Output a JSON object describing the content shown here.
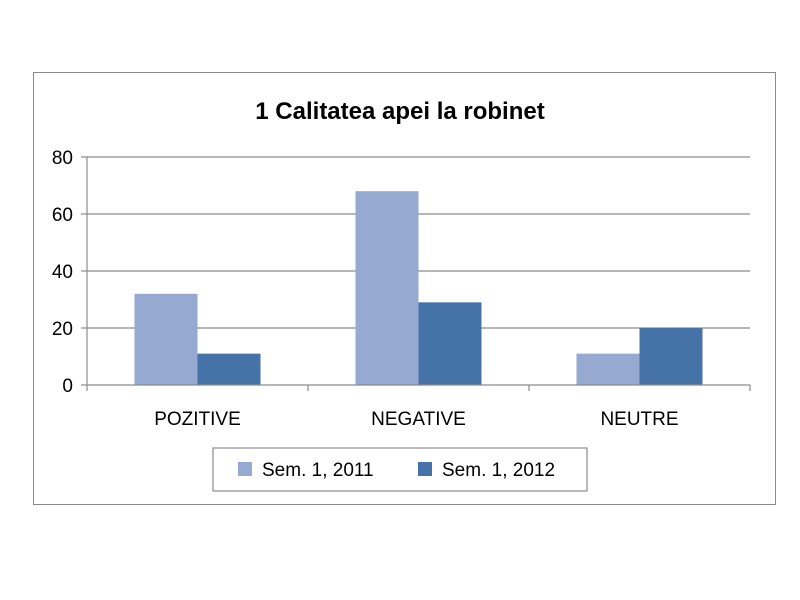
{
  "chart_data": {
    "type": "bar",
    "title": "1 Calitatea apei la robinet",
    "categories": [
      "POZITIVE",
      "NEGATIVE",
      "NEUTRE"
    ],
    "series": [
      {
        "name": "Sem. 1, 2011",
        "values": [
          32,
          68,
          11
        ],
        "color": "#95a9d1"
      },
      {
        "name": "Sem. 1, 2012",
        "values": [
          11,
          29,
          20
        ],
        "color": "#4572a7"
      }
    ],
    "ylim": [
      0,
      80
    ],
    "yticks": [
      0,
      20,
      40,
      60,
      80
    ],
    "grid": true,
    "legend_position": "bottom"
  }
}
